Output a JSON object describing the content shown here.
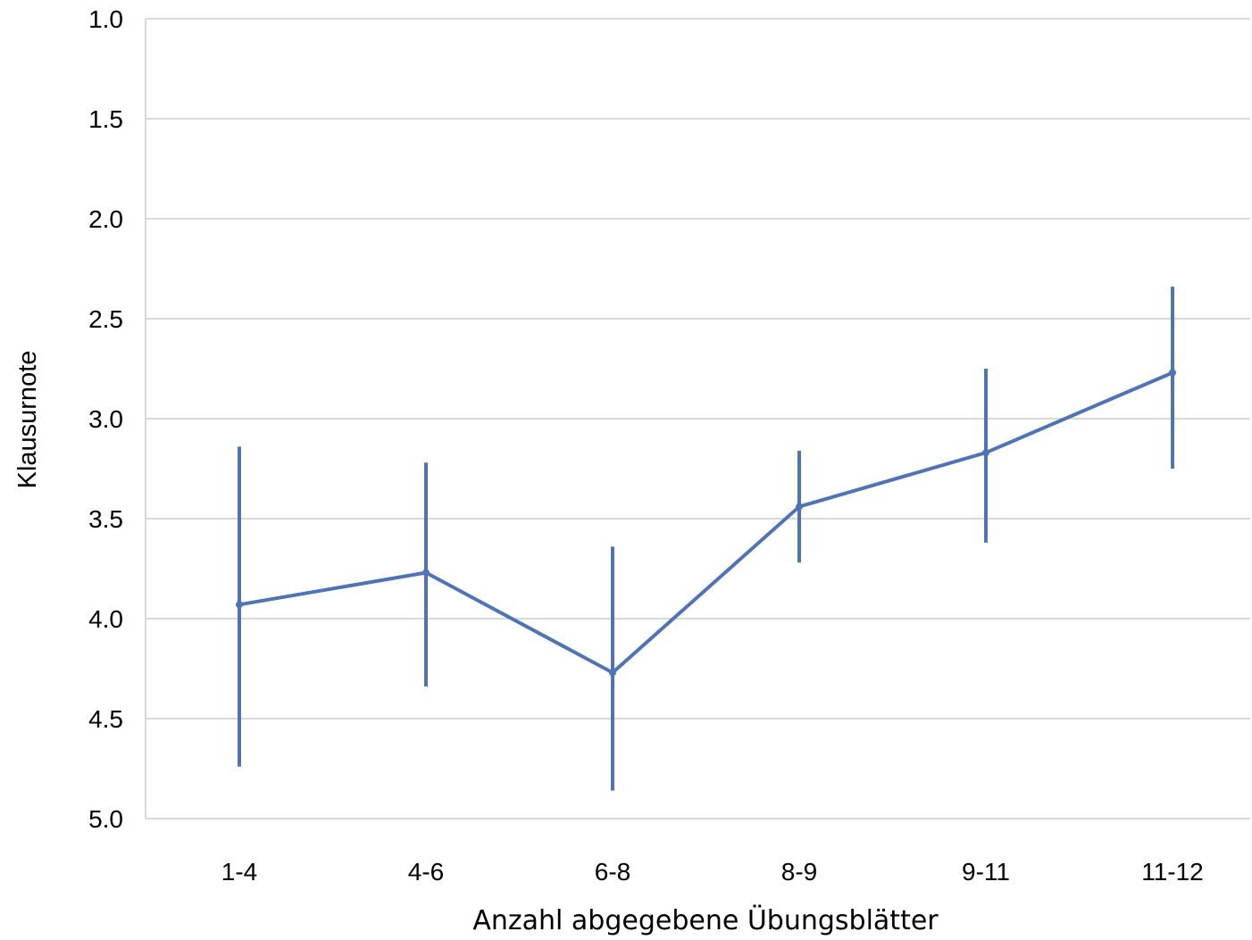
{
  "chart_data": {
    "type": "line",
    "title": "",
    "xlabel": "Anzahl abgegebene Übungsblätter",
    "ylabel": "Klausurnote",
    "categories": [
      "1-4",
      "4-6",
      "6-8",
      "8-9",
      "9-11",
      "11-12"
    ],
    "ylim": [
      1.0,
      5.0
    ],
    "y_inverted": true,
    "yticks": [
      "1.0",
      "1.5",
      "2.0",
      "2.5",
      "3.0",
      "3.5",
      "4.0",
      "4.5",
      "5.0"
    ],
    "grid": true,
    "legend": "none",
    "series": [
      {
        "values": [
          3.93,
          3.77,
          4.27,
          3.44,
          3.17,
          2.77
        ],
        "error_low": [
          3.14,
          3.22,
          3.64,
          3.16,
          2.75,
          2.34
        ],
        "error_high": [
          4.74,
          4.34,
          4.86,
          3.72,
          3.62,
          3.25
        ]
      }
    ],
    "colors": {
      "series": "#4f73b5",
      "grid": "#d9d9d9",
      "axis": "#d9d9d9"
    }
  }
}
